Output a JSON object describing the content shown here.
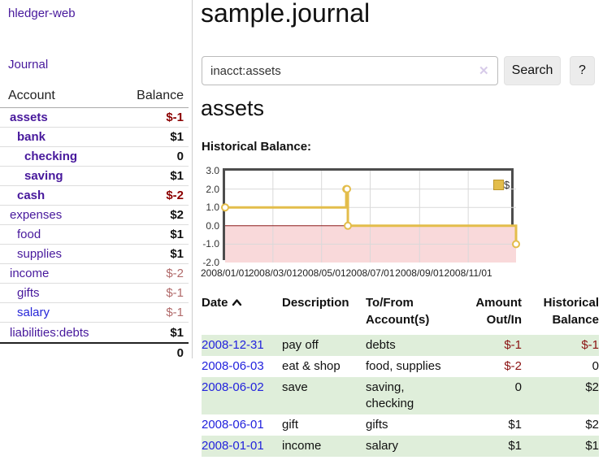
{
  "colors": {
    "accent_purple": "#47189c",
    "link_blue": "#2525d8",
    "date_link_blue": "#2222dd",
    "negative_strong": "#8b0000",
    "negative_muted": "#b16a6a",
    "row_stripe_green": "#dfeeda",
    "chart_line_gold": "#e3bd4b",
    "button_gray": "#ececec"
  },
  "sidebar": {
    "brand": "hledger-web",
    "nav": {
      "journal": "Journal"
    },
    "accounts": {
      "header": {
        "account": "Account",
        "balance": "Balance"
      },
      "rows": [
        {
          "name": "assets",
          "balance": "$-1"
        },
        {
          "name": "bank",
          "balance": "$1"
        },
        {
          "name": "checking",
          "balance": "0"
        },
        {
          "name": "saving",
          "balance": "$1"
        },
        {
          "name": "cash",
          "balance": "$-2"
        },
        {
          "name": "expenses",
          "balance": "$2"
        },
        {
          "name": "food",
          "balance": "$1"
        },
        {
          "name": "supplies",
          "balance": "$1"
        },
        {
          "name": "income",
          "balance": "$-2"
        },
        {
          "name": "gifts",
          "balance": "$-1"
        },
        {
          "name": "salary",
          "balance": "$-1"
        },
        {
          "name": "liabilities:debts",
          "balance": "$1"
        }
      ],
      "total": "0"
    }
  },
  "main": {
    "title": "sample.journal",
    "search": {
      "value": "inacct:assets",
      "clear_icon": "✕",
      "search_button": "Search",
      "help_button": "?"
    },
    "account_heading": "assets",
    "section_heading": "Historical Balance:",
    "register": {
      "headers": {
        "date": "Date",
        "description": "Description",
        "tofrom_line1": "To/From",
        "tofrom_line2": "Account(s)",
        "amount_line1": "Amount",
        "amount_line2": "Out/In",
        "balance_line1": "Historical",
        "balance_line2": "Balance"
      },
      "rows": [
        {
          "date": "2008-12-31",
          "description": "pay off",
          "accounts": "debts",
          "amount": "$-1",
          "balance": "$-1"
        },
        {
          "date": "2008-06-03",
          "description": "eat & shop",
          "accounts": "food, supplies",
          "amount": "$-2",
          "balance": "0"
        },
        {
          "date": "2008-06-02",
          "description": "save",
          "accounts": "saving, checking",
          "amount": "0",
          "balance": "$2"
        },
        {
          "date": "2008-06-01",
          "description": "gift",
          "accounts": "gifts",
          "amount": "$1",
          "balance": "$2"
        },
        {
          "date": "2008-01-01",
          "description": "income",
          "accounts": "salary",
          "amount": "$1",
          "balance": "$1"
        }
      ]
    }
  },
  "chart_data": {
    "type": "line",
    "title": "Historical Balance",
    "step": true,
    "x_range": [
      "2008-01-01",
      "2008-12-31"
    ],
    "ylim": [
      -2,
      3
    ],
    "ytick_labels": [
      "3.0",
      "2.0",
      "1.0",
      "0.0",
      "-1.0",
      "-2.0"
    ],
    "xtick_labels": [
      "2008/01/01",
      "2008/03/01",
      "2008/05/01",
      "2008/07/01",
      "2008/09/01",
      "2008/11/01"
    ],
    "series": [
      {
        "name": "$",
        "color": "#e3bd4b",
        "points": [
          [
            "2008-01-01",
            1
          ],
          [
            "2008-06-01",
            2
          ],
          [
            "2008-06-02",
            2
          ],
          [
            "2008-06-03",
            0
          ],
          [
            "2008-12-31",
            -1
          ]
        ]
      }
    ],
    "legend_position": "top-right",
    "grid": true,
    "negative_region_fill": "#f9d9da",
    "zero_line_color": "#8b1a1a"
  }
}
